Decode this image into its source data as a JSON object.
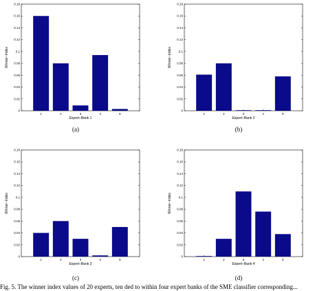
{
  "chart_data": [
    {
      "type": "bar",
      "categories": [
        "1",
        "2",
        "3",
        "4",
        "5"
      ],
      "values": [
        0.16,
        0.08,
        0.009,
        0.094,
        0.003
      ],
      "xlabel": "Expert–Bank 1",
      "ylabel": "Winner–Index",
      "ylim": [
        0,
        0.18
      ],
      "yticks": [
        "0",
        "0.02",
        "0.04",
        "0.06",
        "0.08",
        "0.1",
        "0.12",
        "0.14",
        "0.16",
        "0.18"
      ],
      "caption": "(a)",
      "color": "#0a0a8a"
    },
    {
      "type": "bar",
      "categories": [
        "1",
        "2",
        "3",
        "4",
        "5"
      ],
      "values": [
        0.061,
        0.08,
        0.001,
        0.001,
        0.058
      ],
      "xlabel": "Expert–Bank 2",
      "ylabel": "Winner–Index",
      "ylim": [
        0,
        0.18
      ],
      "yticks": [
        "0",
        "0.02",
        "0.04",
        "0.06",
        "0.08",
        "0.1",
        "0.12",
        "0.14",
        "0.16",
        "0.18"
      ],
      "caption": "(b)",
      "color": "#0a0a8a"
    },
    {
      "type": "bar",
      "categories": [
        "1",
        "2",
        "3",
        "4",
        "5"
      ],
      "values": [
        0.04,
        0.06,
        0.03,
        0.002,
        0.05
      ],
      "xlabel": "Expert–Bank 3",
      "ylabel": "Winner–Index",
      "ylim": [
        0,
        0.18
      ],
      "yticks": [
        "0",
        "0.02",
        "0.04",
        "0.06",
        "0.08",
        "0.1",
        "0.12",
        "0.14",
        "0.16",
        "0.18"
      ],
      "caption": "(c)",
      "color": "#0a0a8a"
    },
    {
      "type": "bar",
      "categories": [
        "1",
        "2",
        "3",
        "4",
        "5"
      ],
      "values": [
        0.001,
        0.03,
        0.11,
        0.076,
        0.038
      ],
      "xlabel": "Expert–Bank 4",
      "ylabel": "Winner–Index",
      "ylim": [
        0,
        0.18
      ],
      "yticks": [
        "0",
        "0.02",
        "0.04",
        "0.06",
        "0.08",
        "0.1",
        "0.12",
        "0.14",
        "0.16",
        "0.18"
      ],
      "caption": "(d)",
      "color": "#0a0a8a"
    }
  ],
  "footer_text": "Fig. 5. The winner index values of 20 experts, ten ded to within four expert banks of the SME classifier corresponding..."
}
